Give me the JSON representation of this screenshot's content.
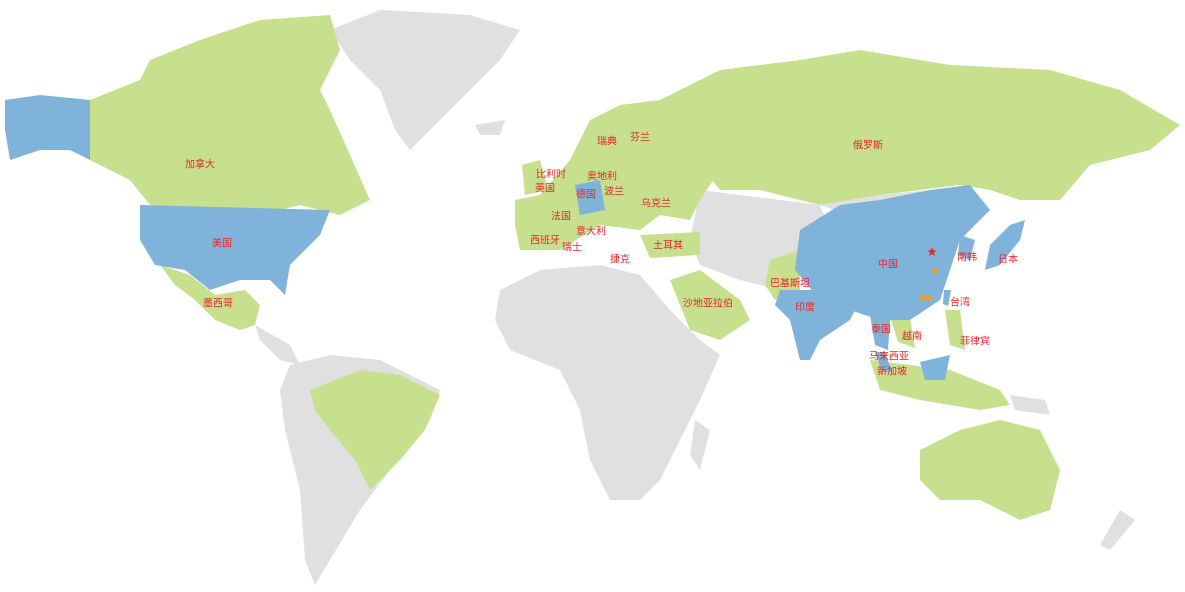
{
  "colors": {
    "highlight": "#80b3da",
    "covered": "#c6e08e",
    "other": "#e0e0e0",
    "label": "#e8262b",
    "star": "#e8262b",
    "office": "#f39c1e"
  },
  "labels": [
    {
      "text": "加拿大",
      "status": "covered"
    },
    {
      "text": "美国",
      "status": "highlight"
    },
    {
      "text": "墨西哥",
      "status": "covered"
    },
    {
      "text": "瑞典",
      "status": "covered"
    },
    {
      "text": "芬兰",
      "status": "covered"
    },
    {
      "text": "比利时",
      "status": "covered"
    },
    {
      "text": "奥地利",
      "status": "covered"
    },
    {
      "text": "英国",
      "status": "covered"
    },
    {
      "text": "德国",
      "status": "highlight"
    },
    {
      "text": "波兰",
      "status": "covered"
    },
    {
      "text": "法国",
      "status": "covered"
    },
    {
      "text": "乌克兰",
      "status": "covered"
    },
    {
      "text": "西班牙",
      "status": "covered"
    },
    {
      "text": "意大利",
      "status": "covered"
    },
    {
      "text": "瑞士",
      "status": "covered"
    },
    {
      "text": "捷克",
      "status": "covered"
    },
    {
      "text": "土耳其",
      "status": "covered"
    },
    {
      "text": "俄罗斯",
      "status": "covered"
    },
    {
      "text": "巴基斯坦",
      "status": "covered"
    },
    {
      "text": "沙地亚拉伯",
      "status": "covered"
    },
    {
      "text": "印度",
      "status": "highlight"
    },
    {
      "text": "中国",
      "status": "highlight"
    },
    {
      "text": "南韩",
      "status": "highlight"
    },
    {
      "text": "日本",
      "status": "highlight"
    },
    {
      "text": "台湾",
      "status": "highlight"
    },
    {
      "text": "泰国",
      "status": "highlight"
    },
    {
      "text": "越南",
      "status": "covered"
    },
    {
      "text": "菲律宾",
      "status": "covered"
    },
    {
      "text": "马来西亚",
      "status": "highlight"
    },
    {
      "text": "新加坡",
      "status": "highlight"
    }
  ],
  "markers": [
    {
      "type": "star-icon",
      "color": "#e8262b"
    },
    {
      "type": "square-icon",
      "color": "#f39c1e"
    },
    {
      "type": "square-icon",
      "color": "#f39c1e"
    },
    {
      "type": "square-icon",
      "color": "#f39c1e"
    }
  ]
}
